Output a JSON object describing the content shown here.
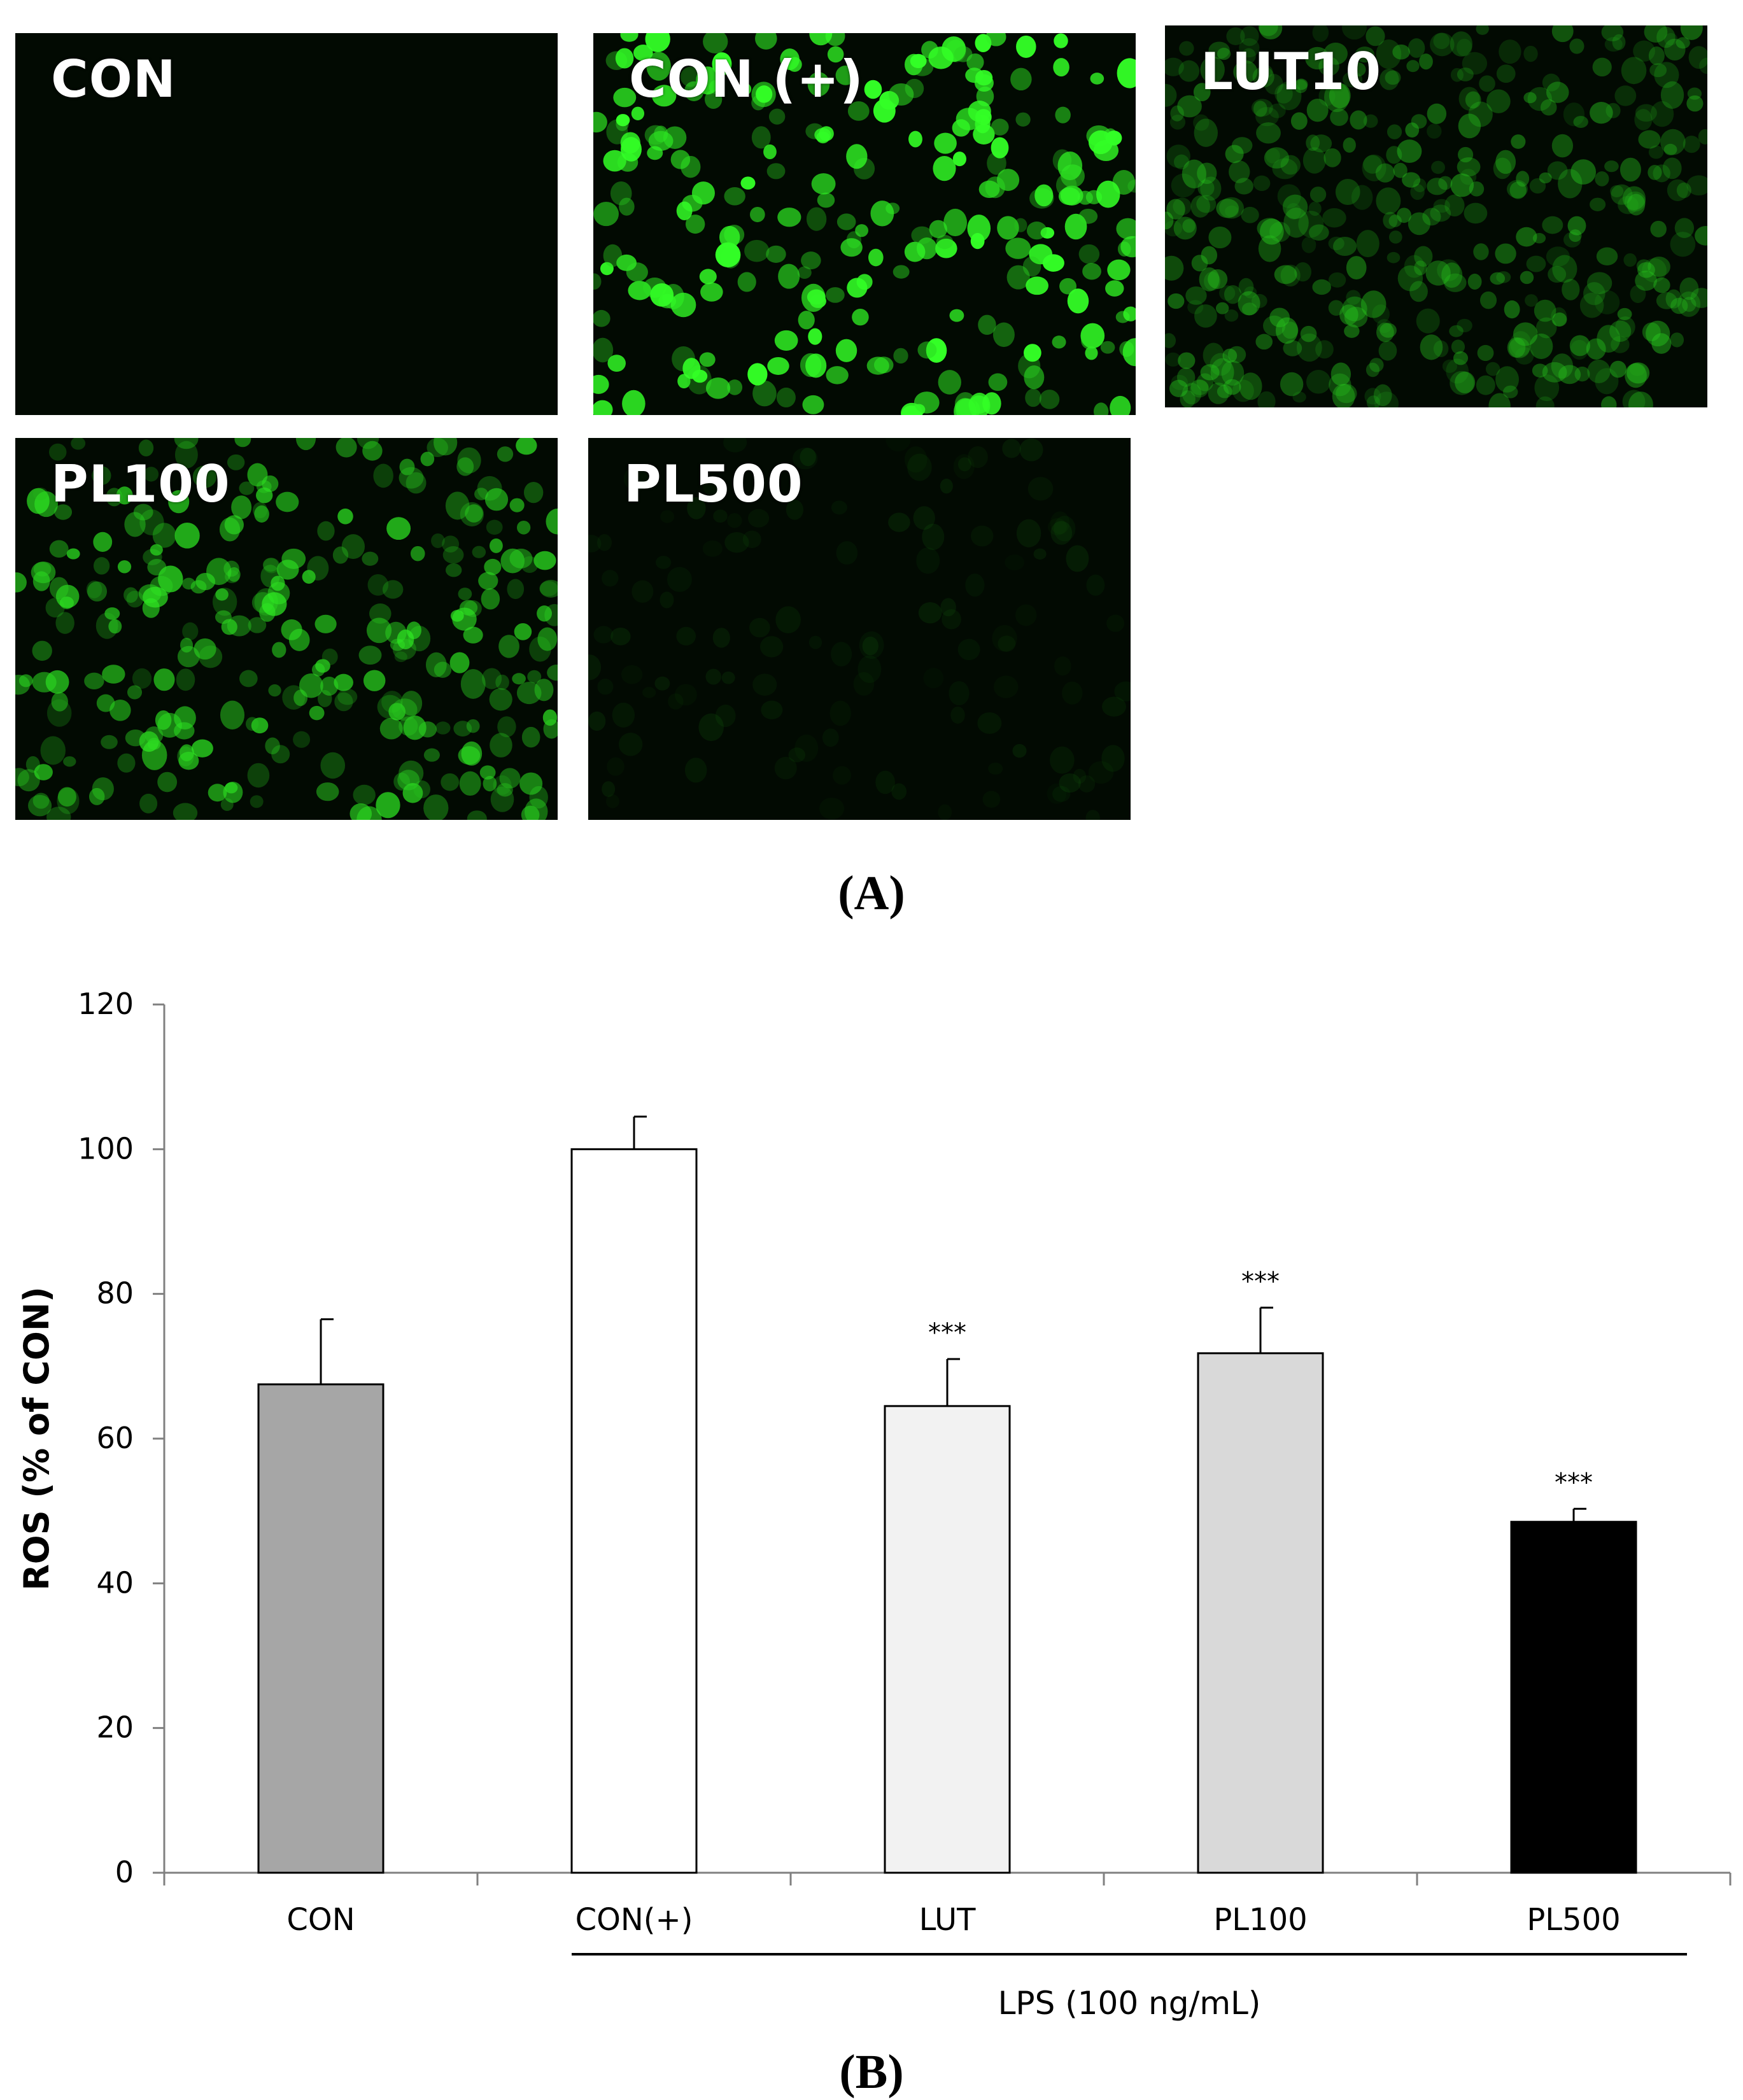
{
  "panel_a": {
    "letter": "(A)",
    "images": [
      {
        "label": "CON",
        "brightness": 0.0,
        "density": 0
      },
      {
        "label": "CON (+)",
        "brightness": 1.0,
        "density": 260
      },
      {
        "label": "LUT10",
        "brightness": 0.45,
        "density": 420
      },
      {
        "label": "PL100",
        "brightness": 0.7,
        "density": 300
      },
      {
        "label": "PL500",
        "brightness": 0.12,
        "density": 120
      }
    ],
    "fluorescence_color": "#22dd22"
  },
  "panel_b": {
    "letter": "(B)"
  },
  "chart_data": {
    "type": "bar",
    "categories": [
      "CON",
      "CON(+)",
      "LUT",
      "PL100",
      "PL500"
    ],
    "values": [
      67.5,
      100,
      64.5,
      71.8,
      48.5
    ],
    "errors": [
      9,
      4.5,
      6.5,
      6.3,
      1.8
    ],
    "significance": [
      "",
      "",
      "***",
      "***",
      "***"
    ],
    "bar_colors": [
      "#a6a6a6",
      "#ffffff",
      "#f2f2f2",
      "#d9d9d9",
      "#000000"
    ],
    "title": "",
    "xlabel": "",
    "ylabel": "ROS (% of CON)",
    "ylim": [
      0,
      120
    ],
    "yticks": [
      0,
      20,
      40,
      60,
      80,
      100,
      120
    ],
    "grid": false,
    "group_label": "LPS (100 ng/mL)",
    "group_categories": [
      "CON(+)",
      "LUT",
      "PL100",
      "PL500"
    ]
  }
}
